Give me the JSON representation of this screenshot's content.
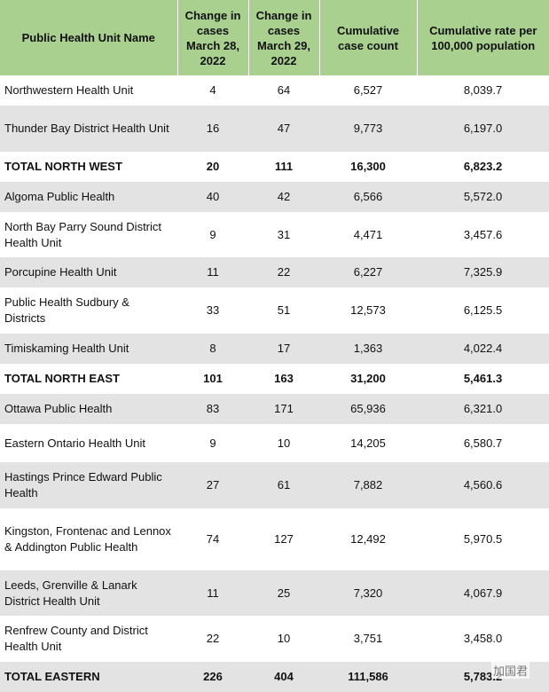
{
  "table": {
    "header": [
      "Public Health Unit Name",
      "Change in cases March 28, 2022",
      "Change in cases March 29, 2022",
      "Cumulative case count",
      "Cumulative rate per 100,000 population"
    ],
    "rows": [
      {
        "cells": [
          "Northwestern Health Unit",
          "4",
          "64",
          "6,527",
          "8,039.7"
        ]
      },
      {
        "cells": [
          "Thunder Bay District Health Unit",
          "16",
          "47",
          "9,773",
          "6,197.0"
        ]
      },
      {
        "cells": [
          "TOTAL NORTH WEST",
          "20",
          "111",
          "16,300",
          "6,823.2"
        ],
        "emphasis": true
      },
      {
        "cells": [
          "Algoma Public Health",
          "40",
          "42",
          "6,566",
          "5,572.0"
        ]
      },
      {
        "cells": [
          "North Bay Parry Sound District Health Unit",
          "9",
          "31",
          "4,471",
          "3,457.6"
        ]
      },
      {
        "cells": [
          "Porcupine Health Unit",
          "11",
          "22",
          "6,227",
          "7,325.9"
        ]
      },
      {
        "cells": [
          "Public Health Sudbury & Districts",
          "33",
          "51",
          "12,573",
          "6,125.5"
        ]
      },
      {
        "cells": [
          "Timiskaming Health Unit",
          "8",
          "17",
          "1,363",
          "4,022.4"
        ]
      },
      {
        "cells": [
          "TOTAL NORTH EAST",
          "101",
          "163",
          "31,200",
          "5,461.3"
        ],
        "emphasis": true
      },
      {
        "cells": [
          "Ottawa Public Health",
          "83",
          "171",
          "65,936",
          "6,321.0"
        ]
      },
      {
        "cells": [
          "Eastern Ontario Health Unit",
          "9",
          "10",
          "14,205",
          "6,580.7"
        ]
      },
      {
        "cells": [
          "Hastings Prince Edward Public Health",
          "27",
          "61",
          "7,882",
          "4,560.6"
        ]
      },
      {
        "cells": [
          "Kingston, Frontenac and Lennox & Addington Public Health",
          "74",
          "127",
          "12,492",
          "5,970.5"
        ]
      },
      {
        "cells": [
          "Leeds, Grenville & Lanark District Health Unit",
          "11",
          "25",
          "7,320",
          "4,067.9"
        ]
      },
      {
        "cells": [
          "Renfrew County and District Health Unit",
          "22",
          "10",
          "3,751",
          "3,458.0"
        ]
      },
      {
        "cells": [
          "TOTAL EASTERN",
          "226",
          "404",
          "111,586",
          "5,783.2"
        ],
        "emphasis": true
      }
    ]
  },
  "watermark": "加国君"
}
